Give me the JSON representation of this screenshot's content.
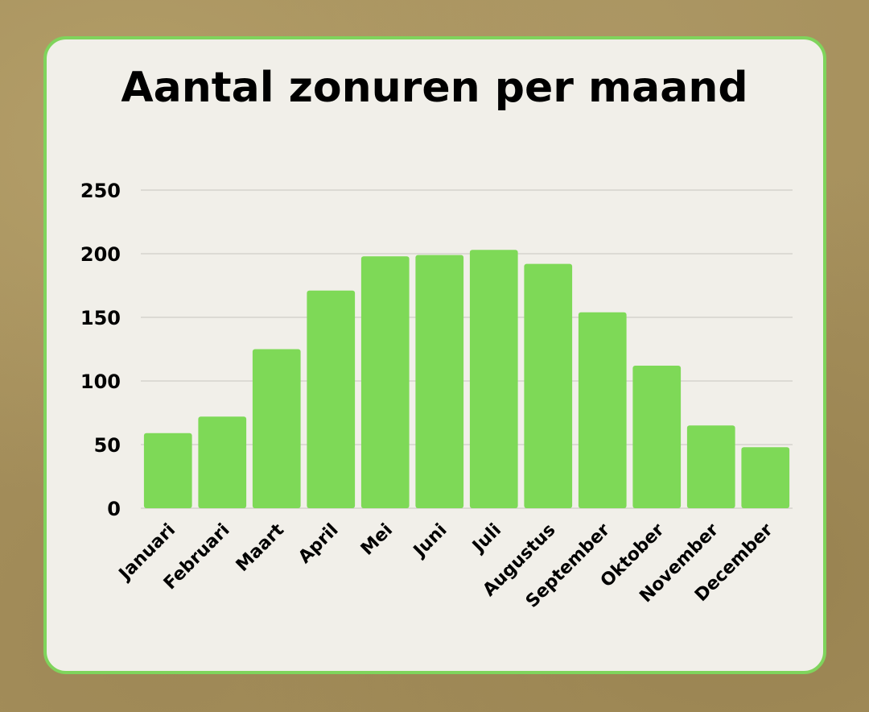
{
  "chart_data": {
    "type": "bar",
    "title": "Aantal zonuren per maand",
    "xlabel": "",
    "ylabel": "",
    "categories": [
      "Januari",
      "Februari",
      "Maart",
      "April",
      "Mei",
      "Juni",
      "Juli",
      "Augustus",
      "September",
      "Oktober",
      "November",
      "December"
    ],
    "values": [
      59,
      72,
      125,
      171,
      198,
      199,
      203,
      192,
      154,
      112,
      65,
      48
    ],
    "ylim": [
      0,
      250
    ],
    "yticks": [
      0,
      50,
      100,
      150,
      200,
      250
    ],
    "grid": true,
    "legend": "none",
    "bar_color": "#7ed957",
    "grid_color": "#c8c6c0",
    "card_border_color": "#7fd45c",
    "card_background": "#f1efe9",
    "page_background": "#a6905c"
  }
}
